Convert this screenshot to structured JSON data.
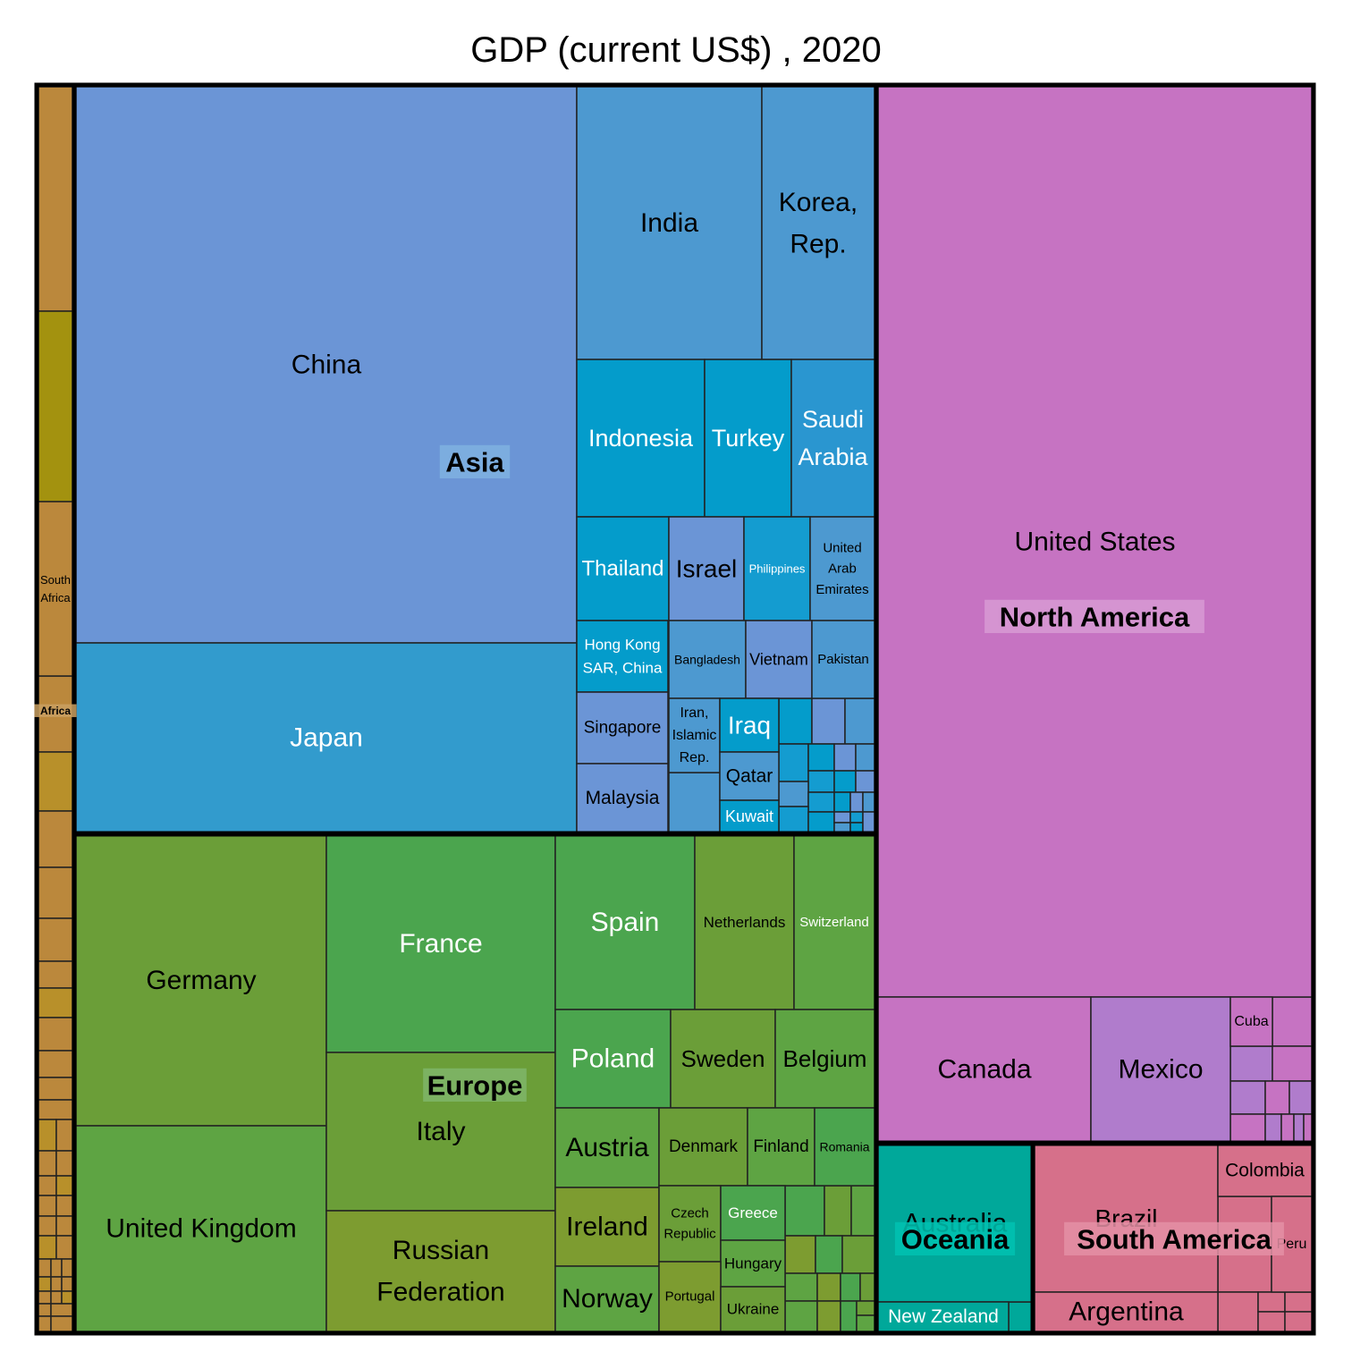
{
  "chart_data": {
    "type": "treemap",
    "title": "GDP (current US$) , 2020",
    "groups": [
      {
        "name": "Asia",
        "color": "#4a8ed1",
        "items": [
          {
            "label": "China",
            "color": "#6b95d6"
          },
          {
            "label": "Japan",
            "color": "#329bcd"
          },
          {
            "label": "India",
            "color": "#4d99d0"
          },
          {
            "label": "Korea, Rep.",
            "color": "#4d99d0"
          },
          {
            "label": "Indonesia",
            "color": "#049ccb"
          },
          {
            "label": "Turkey",
            "color": "#049ccb"
          },
          {
            "label": "Saudi Arabia",
            "color": "#2a96d0"
          },
          {
            "label": "Thailand",
            "color": "#049ccb"
          },
          {
            "label": "Israel",
            "color": "#6b95d6"
          },
          {
            "label": "Philippines",
            "color": "#149cd0"
          },
          {
            "label": "United Arab Emirates",
            "color": "#4d99d0"
          },
          {
            "label": "Hong Kong SAR, China",
            "color": "#049ccb"
          },
          {
            "label": "Bangladesh",
            "color": "#4d99d0"
          },
          {
            "label": "Vietnam",
            "color": "#6b95d6"
          },
          {
            "label": "Pakistan",
            "color": "#4d99d0"
          },
          {
            "label": "Singapore",
            "color": "#6b95d6"
          },
          {
            "label": "Iran, Islamic Rep.",
            "color": "#4d99d0"
          },
          {
            "label": "Iraq",
            "color": "#049ccb"
          },
          {
            "label": "Qatar",
            "color": "#4d99d0"
          },
          {
            "label": "Malaysia",
            "color": "#6b95d6"
          },
          {
            "label": "Kuwait",
            "color": "#049ccb"
          }
        ]
      },
      {
        "name": "Europe",
        "color": "#5a9e3f",
        "items": [
          {
            "label": "Germany",
            "color": "#6b9e38"
          },
          {
            "label": "United Kingdom",
            "color": "#5ea443"
          },
          {
            "label": "France",
            "color": "#4ba54e"
          },
          {
            "label": "Italy",
            "color": "#6b9e38"
          },
          {
            "label": "Russian Federation",
            "color": "#7d9c30"
          },
          {
            "label": "Spain",
            "color": "#4ba54e"
          },
          {
            "label": "Netherlands",
            "color": "#6b9e38"
          },
          {
            "label": "Switzerland",
            "color": "#5ea443"
          },
          {
            "label": "Poland",
            "color": "#4ba54e"
          },
          {
            "label": "Sweden",
            "color": "#6b9e38"
          },
          {
            "label": "Belgium",
            "color": "#5ea443"
          },
          {
            "label": "Austria",
            "color": "#5ea443"
          },
          {
            "label": "Denmark",
            "color": "#6b9e38"
          },
          {
            "label": "Finland",
            "color": "#5ea443"
          },
          {
            "label": "Romania",
            "color": "#4ba54e"
          },
          {
            "label": "Ireland",
            "color": "#7d9c30"
          },
          {
            "label": "Czech Republic",
            "color": "#6b9e38"
          },
          {
            "label": "Greece",
            "color": "#4ba54e"
          },
          {
            "label": "Hungary",
            "color": "#5ea443"
          },
          {
            "label": "Norway",
            "color": "#5ea443"
          },
          {
            "label": "Portugal",
            "color": "#7d9c30"
          },
          {
            "label": "Ukraine",
            "color": "#6b9e38"
          }
        ]
      },
      {
        "name": "North America",
        "color": "#c673c2",
        "items": [
          {
            "label": "United States",
            "color": "#c673c2"
          },
          {
            "label": "Canada",
            "color": "#c673c2"
          },
          {
            "label": "Mexico",
            "color": "#b07ccc"
          },
          {
            "label": "Cuba",
            "color": "#c673c2"
          }
        ]
      },
      {
        "name": "South America",
        "color": "#d6708a",
        "items": [
          {
            "label": "Brazil",
            "color": "#d6708a"
          },
          {
            "label": "Argentina",
            "color": "#d6708a"
          },
          {
            "label": "Colombia",
            "color": "#d6708a"
          },
          {
            "label": "Peru",
            "color": "#d6708a"
          }
        ]
      },
      {
        "name": "Oceania",
        "color": "#00a89a",
        "items": [
          {
            "label": "Australia",
            "color": "#00a89a"
          },
          {
            "label": "New Zealand",
            "color": "#00a89a"
          }
        ]
      },
      {
        "name": "Africa",
        "color": "#bb883c",
        "items": [
          {
            "label": "South Africa",
            "color": "#bb883c"
          }
        ]
      }
    ]
  }
}
